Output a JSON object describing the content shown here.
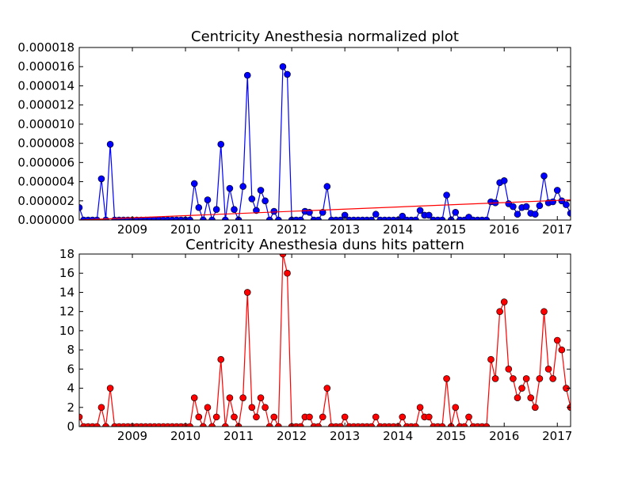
{
  "chart_data": [
    {
      "type": "line",
      "title": "Centricity Anesthesia normalized plot",
      "xlabel": "",
      "ylabel": "",
      "x_range": [
        2008.0,
        2017.25
      ],
      "x_ticks": [
        2009,
        2010,
        2011,
        2012,
        2013,
        2014,
        2015,
        2016,
        2017
      ],
      "x_tick_labels": [
        "2009",
        "2010",
        "2011",
        "2012",
        "2013",
        "2014",
        "2015",
        "2016",
        "2017"
      ],
      "ylim": [
        0,
        1.8e-05
      ],
      "y_ticks": [
        0,
        2e-06,
        4e-06,
        6e-06,
        8e-06,
        1e-05,
        1.2e-05,
        1.4e-05,
        1.6e-05,
        1.8e-05
      ],
      "y_tick_labels": [
        "0.000000",
        "0.000002",
        "0.000004",
        "0.000006",
        "0.000008",
        "0.000010",
        "0.000012",
        "0.000014",
        "0.000016",
        "0.000018"
      ],
      "grid": false,
      "series": [
        {
          "color": "#0000ff",
          "marker": "circle",
          "start": "2008-01",
          "frequency": "monthly",
          "values": [
            1.3e-06,
            0,
            0,
            0,
            0,
            4.3e-06,
            0,
            7.9e-06,
            0,
            0,
            0,
            0,
            0,
            0,
            0,
            0,
            0,
            0,
            0,
            0,
            0,
            0,
            0,
            0,
            0,
            0,
            3.8e-06,
            1.3e-06,
            0,
            2.1e-06,
            0,
            1.1e-06,
            7.9e-06,
            0,
            3.3e-06,
            1.1e-06,
            0,
            3.5e-06,
            1.51e-05,
            2.2e-06,
            1e-06,
            3.1e-06,
            2e-06,
            0,
            9e-07,
            0,
            1.6e-05,
            1.52e-05,
            0,
            0,
            0,
            9e-07,
            8e-07,
            0,
            0,
            8e-07,
            3.5e-06,
            0,
            0,
            0,
            5e-07,
            0,
            0,
            0,
            0,
            0,
            0,
            6e-07,
            0,
            0,
            0,
            0,
            0,
            4e-07,
            0,
            0,
            0,
            1e-06,
            5e-07,
            5e-07,
            0,
            0,
            0,
            2.6e-06,
            0,
            8e-07,
            0,
            0,
            3e-07,
            0,
            0,
            0,
            0,
            1.9e-06,
            1.8e-06,
            3.9e-06,
            4.1e-06,
            1.7e-06,
            1.4e-06,
            6e-07,
            1.3e-06,
            1.4e-06,
            7e-07,
            6e-07,
            1.5e-06,
            4.6e-06,
            1.8e-06,
            1.9e-06,
            3.1e-06,
            2e-06,
            1.6e-06,
            7e-07
          ]
        },
        {
          "color": "#ff0000",
          "marker": "none",
          "style": "trend line",
          "x": [
            "2008-01",
            "2017-04"
          ],
          "values": [
            0,
            2.1e-06
          ]
        }
      ]
    },
    {
      "type": "line",
      "title": "Centricity Anesthesia duns hits pattern",
      "xlabel": "",
      "ylabel": "",
      "x_range": [
        2008.0,
        2017.25
      ],
      "x_ticks": [
        2009,
        2010,
        2011,
        2012,
        2013,
        2014,
        2015,
        2016,
        2017
      ],
      "x_tick_labels": [
        "2009",
        "2010",
        "2011",
        "2012",
        "2013",
        "2014",
        "2015",
        "2016",
        "2017"
      ],
      "ylim": [
        0,
        18
      ],
      "y_ticks": [
        0,
        2,
        4,
        6,
        8,
        10,
        12,
        14,
        16,
        18
      ],
      "y_tick_labels": [
        "0",
        "2",
        "4",
        "6",
        "8",
        "10",
        "12",
        "14",
        "16",
        "18"
      ],
      "grid": false,
      "series": [
        {
          "color": "#ff0000",
          "marker": "circle",
          "start": "2008-01",
          "frequency": "monthly",
          "values": [
            1,
            0,
            0,
            0,
            0,
            2,
            0,
            4,
            0,
            0,
            0,
            0,
            0,
            0,
            0,
            0,
            0,
            0,
            0,
            0,
            0,
            0,
            0,
            0,
            0,
            0,
            3,
            1,
            0,
            2,
            0,
            1,
            7,
            0,
            3,
            1,
            0,
            3,
            14,
            2,
            1,
            3,
            2,
            0,
            1,
            0,
            18,
            16,
            0,
            0,
            0,
            1,
            1,
            0,
            0,
            1,
            4,
            0,
            0,
            0,
            1,
            0,
            0,
            0,
            0,
            0,
            0,
            1,
            0,
            0,
            0,
            0,
            0,
            1,
            0,
            0,
            0,
            2,
            1,
            1,
            0,
            0,
            0,
            5,
            0,
            2,
            0,
            0,
            1,
            0,
            0,
            0,
            0,
            7,
            5,
            12,
            13,
            6,
            5,
            3,
            4,
            5,
            3,
            2,
            5,
            12,
            6,
            5,
            9,
            8,
            4,
            2
          ]
        }
      ]
    }
  ]
}
